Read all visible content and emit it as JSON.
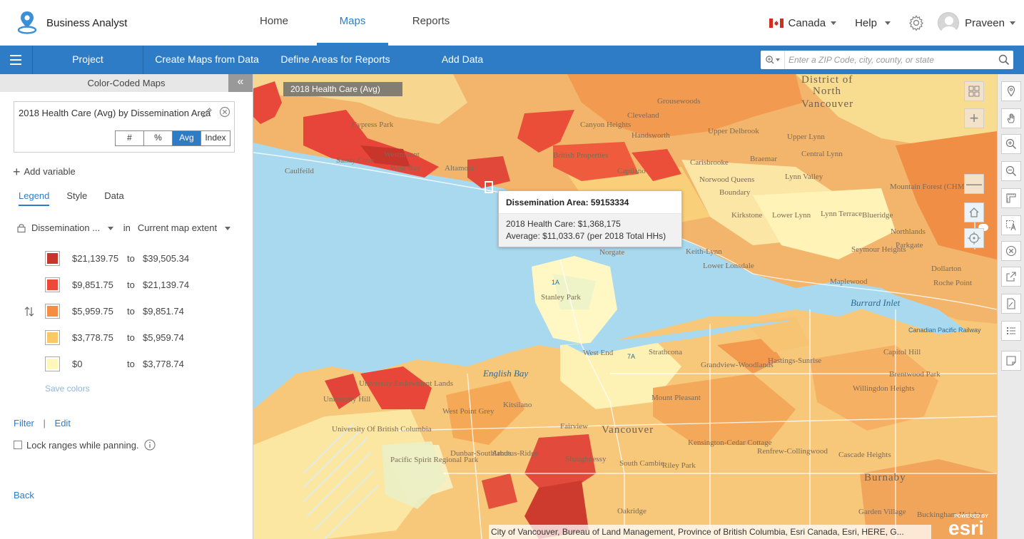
{
  "app": {
    "name": "Business Analyst",
    "nav": [
      {
        "label": "Home",
        "active": false
      },
      {
        "label": "Maps",
        "active": true
      },
      {
        "label": "Reports",
        "active": false
      }
    ],
    "country": "Canada",
    "help": "Help",
    "user": "Praveen"
  },
  "toolbar": {
    "items": [
      "Project",
      "Create Maps from Data",
      "Define Areas for Reports",
      "Add Data"
    ],
    "search_placeholder": "Enter a ZIP Code, city, county, or state",
    "accent": "#2f7cc6"
  },
  "panel": {
    "title": "Color-Coded Maps",
    "variable_title": "2018 Health Care (Avg) by Dissemination Area",
    "modes": [
      {
        "label": "#",
        "on": false
      },
      {
        "label": "%",
        "on": false
      },
      {
        "label": "Avg",
        "on": true
      },
      {
        "label": "Index",
        "on": false
      }
    ],
    "add_variable": "Add variable",
    "tabs": [
      {
        "label": "Legend",
        "on": true
      },
      {
        "label": "Style",
        "on": false
      },
      {
        "label": "Data",
        "on": false
      }
    ],
    "geography": "Dissemination ...",
    "in_label": "in",
    "extent": "Current map extent",
    "legend": [
      {
        "from": "$21,139.75",
        "to_word": "to",
        "to": "$39,505.34",
        "color": "#c8352a"
      },
      {
        "from": "$9,851.75",
        "to_word": "to",
        "to": "$21,139.74",
        "color": "#ea4a36"
      },
      {
        "from": "$5,959.75",
        "to_word": "to",
        "to": "$9,851.74",
        "color": "#f58e43"
      },
      {
        "from": "$3,778.75",
        "to_word": "to",
        "to": "$5,959.74",
        "color": "#fbc868"
      },
      {
        "from": "$0",
        "to_word": "to",
        "to": "$3,778.74",
        "color": "#fff8ba"
      }
    ],
    "save_colors": "Save colors",
    "filter": "Filter",
    "separator": "|",
    "edit": "Edit",
    "lock_ranges": "Lock ranges while panning.",
    "back": "Back"
  },
  "map": {
    "layer_tag": "2018 Health Care (Avg)",
    "popup": {
      "title": "Dissemination Area: 59153334",
      "line1": "2018 Health Care:  $1,368,175",
      "line2": "Average:  $11,033.67  (per 2018 Total HHs)"
    },
    "labels": {
      "district": "District of",
      "north": "North",
      "vancouver_n": "Vancouver",
      "cypress": "Cypress Park",
      "caulfeild": "Caulfeild",
      "westmount": "Westmount",
      "sandy_cove": "Sandy Cove",
      "west_bay": "West Bay",
      "altamont": "Altamont",
      "grousewoods": "Grousewoods",
      "cleveland": "Cleveland",
      "canyon_heights": "Canyon Heights",
      "handsworth": "Handsworth",
      "british_props": "British Properties",
      "upper_delbrook": "Upper Delbrook",
      "upper_lynn": "Upper Lynn",
      "braemar": "Braemar",
      "central_lynn": "Central Lynn",
      "capilano": "Capilano",
      "carisbrooke": "Carisbrooke",
      "norwood": "Norwood Queens",
      "lynn_valley": "Lynn Valley",
      "boundary": "Boundary",
      "kirkstone": "Kirkstone",
      "lower_lynn": "Lower Lynn",
      "lynn_terrace": "Lynn Terrace",
      "blueridge": "Blueridge",
      "northlands": "Northlands",
      "parkgate": "Parkgate",
      "norgate": "Norgate",
      "keith_lynn": "Keith-Lynn",
      "lower_lonsdale": "Lower Lonsdale",
      "seymour": "Seymour Heights",
      "maplewood": "Maplewood",
      "dollarton": "Dollarton",
      "roche_point": "Roche Point",
      "burrard_inlet": "Burrard Inlet",
      "cp_railway": "Canadian Pacific Railway",
      "stanley": "Stanley Park",
      "english_bay": "English Bay",
      "west_end": "West End",
      "strathcona": "Strathcona",
      "hastings": "Hastings-Sunrise",
      "grandview": "Grandview-Woodlands",
      "capitol_hill": "Capitol Hill",
      "willingdon": "Willingdon Heights",
      "brentwood": "Brentwood Park",
      "university_hill": "University Hill",
      "endowment": "University Endowment Lands",
      "ubc": "University Of British Columbia",
      "kitsilano": "Kitsilano",
      "west_point_grey": "West Point Grey",
      "fairview": "Fairview",
      "mount_pleasant": "Mount Pleasant",
      "vancouver": "Vancouver",
      "pacific_spirit": "Pacific Spirit Regional Park",
      "dunbar": "Dunbar-Southlands",
      "arbutus": "Arbutus-Ridge",
      "shaughnessy": "Shaughnessy",
      "south_cambie": "South Cambie",
      "riley": "Riley Park",
      "kensington": "Kensington-Cedar Cottage",
      "renfrew": "Renfrew-Collingwood",
      "cascade": "Cascade Heights",
      "burnaby": "Burnaby",
      "upper_govan": "Garden Village",
      "oakridge": "Oakridge",
      "buckingham": "Buckingham Heights",
      "mountain_forest": "Mountain Forest (CHMC)",
      "r1a": "1A",
      "r7a": "7A"
    },
    "attribution": "City of Vancouver, Bureau of Land Management, Province of British Columbia, Esri Canada, Esri, HERE, G...",
    "esri_label": "esri",
    "esri_powered": "POWERED BY"
  }
}
